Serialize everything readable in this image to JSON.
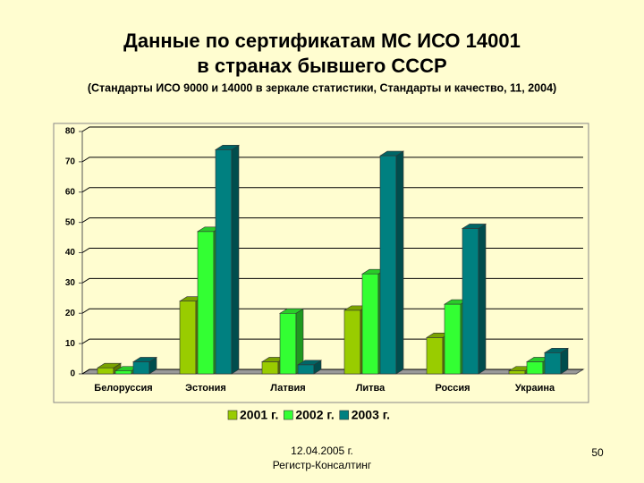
{
  "chart_data": {
    "type": "bar",
    "title": [
      "Данные по сертификатам МС ИСО 14001",
      "в странах бывшего СССР"
    ],
    "subtitle": "(Стандарты ИСО 9000 и 14000 в зеркале статистики, Стандарты и качество, 11, 2004)",
    "categories": [
      "Белоруссия",
      "Эстония",
      "Латвия",
      "Литва",
      "Россия",
      "Украина"
    ],
    "series": [
      {
        "name": "2001 г.",
        "color": "#99cc00",
        "values": [
          2,
          24,
          4,
          21,
          12,
          1
        ]
      },
      {
        "name": "2002 г.",
        "color": "#33ff33",
        "values": [
          1,
          47,
          20,
          33,
          23,
          4
        ]
      },
      {
        "name": "2003 г.",
        "color": "#008080",
        "values": [
          4,
          74,
          3,
          72,
          48,
          7
        ]
      }
    ],
    "ylim": [
      0,
      80
    ],
    "yticks": [
      0,
      10,
      20,
      30,
      40,
      50,
      60,
      70,
      80
    ],
    "grid": true,
    "legend": "bottom"
  },
  "footer": [
    "12.04.2005 г.",
    "Регистр-Консалтинг"
  ],
  "page_number": "50"
}
